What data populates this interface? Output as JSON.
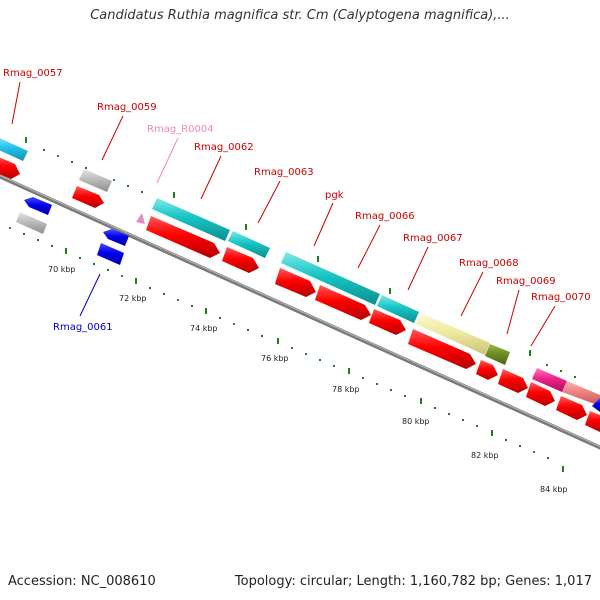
{
  "title": "Candidatus Ruthia magnifica str. Cm (Calyptogena magnifica),...",
  "footer": {
    "accession": "Accession: NC_008610",
    "summary": "Topology: circular; Length: 1,160,782 bp; Genes: 1,017"
  },
  "colors": {
    "forward_cds": "#ff0000",
    "reverse_cds": "#0000ee",
    "cyan_feature": "#16c4c4",
    "gray_feature": "#bbbbbb",
    "yellow_feature": "#eeeaa0",
    "olive_feature": "#6e8e22",
    "pink_feature": "#ee2288",
    "salmon_feature": "#ee8080",
    "backbone": "#7a7a7a",
    "tick": "#1e7e1e",
    "label_red": "#cc0000",
    "label_blue": "#0000bb",
    "label_pink": "#ee88bb"
  },
  "gene_labels": [
    {
      "name": "Rmag_0057",
      "color": "red"
    },
    {
      "name": "Rmag_0059",
      "color": "red"
    },
    {
      "name": "Rmag_R0004",
      "color": "pink"
    },
    {
      "name": "Rmag_0062",
      "color": "red"
    },
    {
      "name": "Rmag_0063",
      "color": "red"
    },
    {
      "name": "pgk",
      "color": "red"
    },
    {
      "name": "Rmag_0066",
      "color": "red"
    },
    {
      "name": "Rmag_0067",
      "color": "red"
    },
    {
      "name": "Rmag_0068",
      "color": "red"
    },
    {
      "name": "Rmag_0069",
      "color": "red"
    },
    {
      "name": "Rmag_0070",
      "color": "red"
    },
    {
      "name": "Rmag_0061",
      "color": "blue"
    }
  ],
  "scale_labels": [
    "70 kbp",
    "72 kbp",
    "74 kbp",
    "76 kbp",
    "78 kbp",
    "80 kbp",
    "82 kbp",
    "84 kbp"
  ]
}
